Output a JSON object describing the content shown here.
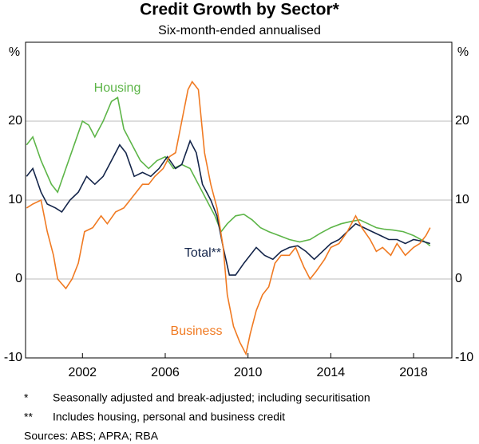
{
  "chart_data": {
    "type": "line",
    "title": "Credit Growth by Sector*",
    "subtitle": "Six-month-ended annualised",
    "ylabel": "%",
    "xlim": [
      1999.25,
      2019.85
    ],
    "xticks": [
      2002,
      2006,
      2010,
      2014,
      2018
    ],
    "ylim": [
      -10,
      30
    ],
    "yticks": [
      -10,
      0,
      10,
      20
    ],
    "grid": true,
    "series": [
      {
        "name": "Housing",
        "color": "#5db548",
        "x": [
          1999.3,
          1999.6,
          2000,
          2000.5,
          2000.8,
          2001.2,
          2001.6,
          2002,
          2002.3,
          2002.6,
          2003,
          2003.4,
          2003.7,
          2004,
          2004.4,
          2004.8,
          2005.2,
          2005.6,
          2006,
          2006.4,
          2006.8,
          2007.2,
          2007.6,
          2008,
          2008.4,
          2008.7,
          2009,
          2009.4,
          2009.8,
          2010.2,
          2010.6,
          2011,
          2011.5,
          2012,
          2012.5,
          2013,
          2013.5,
          2014,
          2014.5,
          2015,
          2015.4,
          2015.8,
          2016.2,
          2016.6,
          2017,
          2017.5,
          2018,
          2018.5,
          2018.8
        ],
        "values": [
          17,
          18,
          15,
          12,
          11,
          14,
          17,
          20,
          19.5,
          18,
          20,
          22.5,
          23,
          19,
          17,
          15,
          14,
          15,
          15.5,
          14,
          14.5,
          14,
          12,
          10,
          8,
          6,
          7,
          8,
          8.2,
          7.5,
          6.5,
          6,
          5.5,
          5,
          4.7,
          5,
          5.8,
          6.5,
          7,
          7.3,
          7.5,
          7,
          6.5,
          6.3,
          6.2,
          6,
          5.5,
          4.8,
          4.2
        ]
      },
      {
        "name": "Total**",
        "color": "#14254a",
        "x": [
          1999.3,
          1999.6,
          2000,
          2000.3,
          2000.7,
          2001,
          2001.4,
          2001.8,
          2002.2,
          2002.6,
          2003,
          2003.4,
          2003.8,
          2004.1,
          2004.5,
          2004.9,
          2005.3,
          2005.7,
          2006.1,
          2006.5,
          2006.8,
          2007.2,
          2007.5,
          2007.8,
          2008.2,
          2008.5,
          2008.8,
          2009.1,
          2009.4,
          2009.8,
          2010.1,
          2010.4,
          2010.8,
          2011.2,
          2011.6,
          2012,
          2012.4,
          2012.8,
          2013.2,
          2013.6,
          2014,
          2014.4,
          2014.8,
          2015.2,
          2015.6,
          2016,
          2016.4,
          2016.8,
          2017.2,
          2017.6,
          2018,
          2018.4,
          2018.8
        ],
        "values": [
          13,
          14,
          11,
          9.5,
          9,
          8.5,
          10,
          11,
          13,
          12,
          13,
          15,
          17,
          16,
          13,
          13.5,
          13,
          14,
          15.5,
          14,
          14.5,
          17.5,
          16,
          12,
          10,
          8,
          4,
          0.5,
          0.5,
          2,
          3,
          4,
          3,
          2.5,
          3.5,
          4,
          4.2,
          3.5,
          2.5,
          3.5,
          4.5,
          5,
          6,
          7,
          6.5,
          6,
          5.5,
          5,
          5,
          4.5,
          5,
          4.8,
          4.5
        ]
      },
      {
        "name": "Business",
        "color": "#f07a22",
        "x": [
          1999.3,
          1999.6,
          2000,
          2000.3,
          2000.6,
          2000.8,
          2001.2,
          2001.5,
          2001.8,
          2002.1,
          2002.5,
          2002.9,
          2003.2,
          2003.6,
          2004,
          2004.3,
          2004.6,
          2004.9,
          2005.2,
          2005.5,
          2005.9,
          2006.2,
          2006.5,
          2006.8,
          2007.1,
          2007.3,
          2007.6,
          2007.9,
          2008.2,
          2008.5,
          2008.8,
          2009,
          2009.3,
          2009.6,
          2009.9,
          2010.1,
          2010.4,
          2010.7,
          2011,
          2011.3,
          2011.6,
          2012,
          2012.3,
          2012.7,
          2013,
          2013.3,
          2013.7,
          2014,
          2014.4,
          2014.8,
          2015.2,
          2015.5,
          2015.9,
          2016.2,
          2016.5,
          2016.9,
          2017.2,
          2017.6,
          2018,
          2018.3,
          2018.6,
          2018.8
        ],
        "values": [
          9,
          9.5,
          10,
          6,
          3,
          0,
          -1.2,
          0,
          2,
          6,
          6.5,
          8,
          7,
          8.5,
          9,
          10,
          11,
          12,
          12,
          13,
          14,
          15.5,
          16,
          20,
          24,
          25,
          24,
          16,
          12,
          9,
          4,
          -2,
          -6,
          -8,
          -9.5,
          -7,
          -4,
          -2,
          -1,
          2,
          3,
          3,
          4,
          1.5,
          0,
          1,
          2.5,
          4,
          4.5,
          6,
          8,
          6.5,
          5,
          3.5,
          4,
          3,
          4.5,
          3,
          4,
          4.5,
          5.5,
          6.5
        ]
      }
    ]
  },
  "notes": [
    {
      "marker": "*",
      "text": "Seasonally adjusted and break-adjusted; including securitisation"
    },
    {
      "marker": "**",
      "text": "Includes housing, personal and business credit"
    }
  ],
  "sources": "Sources: ABS; APRA; RBA"
}
